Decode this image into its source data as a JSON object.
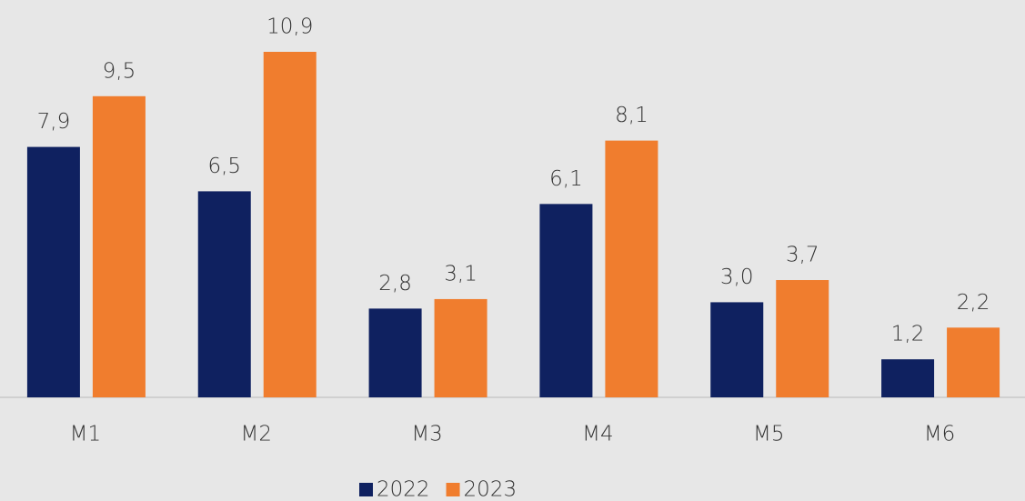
{
  "chart_data": {
    "type": "bar",
    "categories": [
      "M1",
      "M2",
      "M3",
      "M4",
      "M5",
      "M6"
    ],
    "series": [
      {
        "name": "2022",
        "color": "#0f2160",
        "values": [
          7.9,
          6.5,
          2.8,
          6.1,
          3.0,
          1.2
        ],
        "value_labels": [
          "7,9",
          "6,5",
          "2,8",
          "6,1",
          "3,0",
          "1,2"
        ]
      },
      {
        "name": "2023",
        "color": "#f07d2e",
        "values": [
          9.5,
          10.9,
          3.1,
          8.1,
          3.7,
          2.2
        ],
        "value_labels": [
          "9,5",
          "10,9",
          "3,1",
          "8,1",
          "3,7",
          "2,2"
        ]
      }
    ],
    "legend": "bottom"
  }
}
